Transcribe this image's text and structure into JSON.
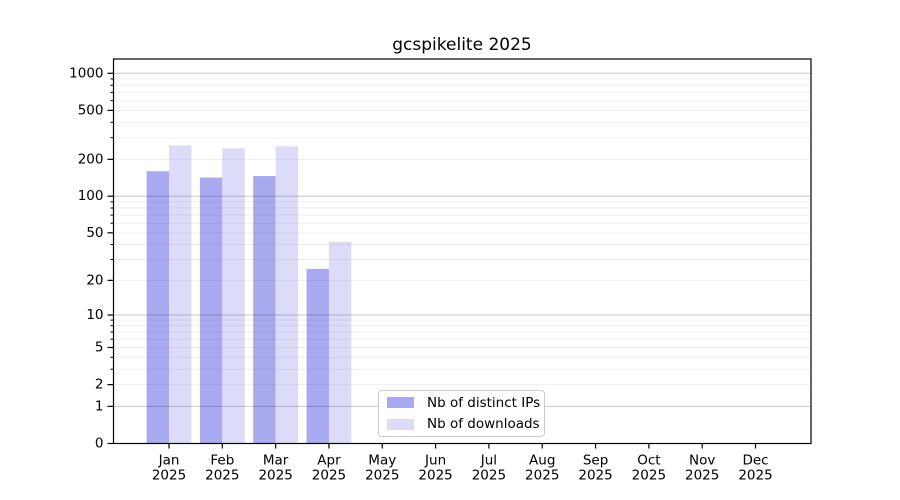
{
  "chart_data": {
    "type": "bar",
    "title": "gcspikelite 2025",
    "categories": [
      "Jan 2025",
      "Feb 2025",
      "Mar 2025",
      "Apr 2025",
      "May 2025",
      "Jun 2025",
      "Jul 2025",
      "Aug 2025",
      "Sep 2025",
      "Oct 2025",
      "Nov 2025",
      "Dec 2025"
    ],
    "series": [
      {
        "name": "Nb of distinct IPs",
        "color": "#a9a9f0",
        "values": [
          160,
          142,
          146,
          25,
          0,
          0,
          0,
          0,
          0,
          0,
          0,
          0
        ]
      },
      {
        "name": "Nb of downloads",
        "color": "#dcdcf8",
        "values": [
          260,
          246,
          255,
          42,
          0,
          0,
          0,
          0,
          0,
          0,
          0,
          0
        ]
      }
    ],
    "yscale": "log1p",
    "yticks": [
      0,
      1,
      2,
      5,
      10,
      20,
      50,
      100,
      200,
      500,
      1000
    ],
    "ylim": [
      0,
      1300
    ],
    "xlabel": "",
    "ylabel": "",
    "grid": "horizontal",
    "legend_position": "lower-center",
    "colors": {
      "major_grid": "#c9c9c9",
      "minor_grid": "#efefef",
      "axis": "#000000",
      "text": "#000000",
      "background": "#ffffff"
    }
  }
}
